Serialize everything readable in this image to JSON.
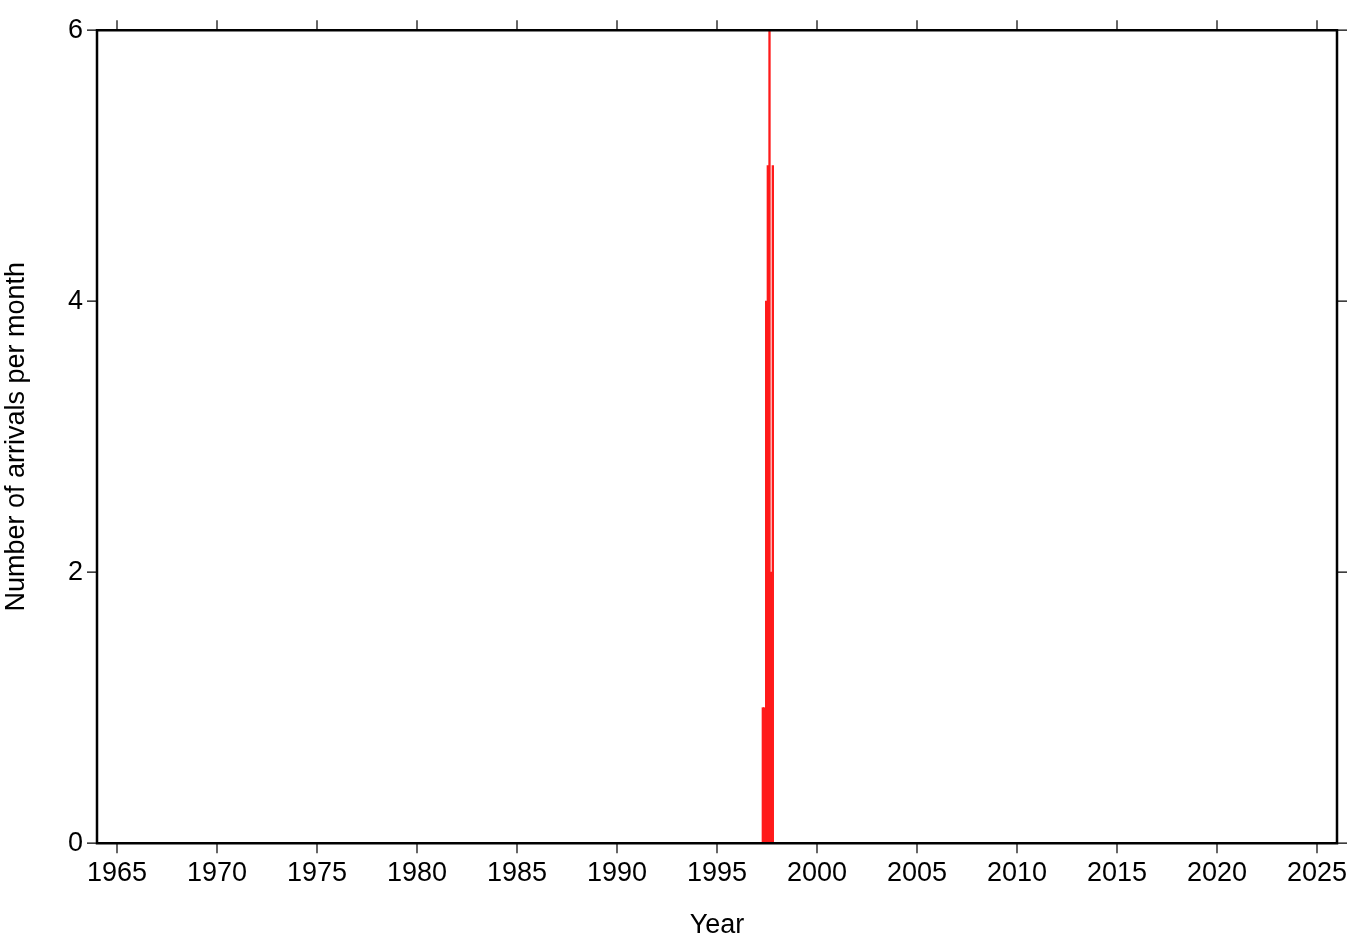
{
  "chart_data": {
    "type": "histogram",
    "xlabel": "Year",
    "ylabel": "Number of arrivals per month",
    "bins": [
      1997.25,
      1997.333,
      1997.417,
      1997.5,
      1997.583,
      1997.667,
      1997.75,
      1997.833
    ],
    "values": [
      1,
      1,
      4,
      5,
      6,
      2,
      5
    ],
    "color": "#ff1a1a",
    "xlim": [
      1964,
      2026
    ],
    "xticks": [
      1965,
      1970,
      1975,
      1980,
      1985,
      1990,
      1995,
      2000,
      2005,
      2010,
      2015,
      2020,
      2025
    ],
    "ylim": [
      0,
      6
    ],
    "yticks": [
      0,
      2,
      4,
      6
    ],
    "grid": false
  }
}
